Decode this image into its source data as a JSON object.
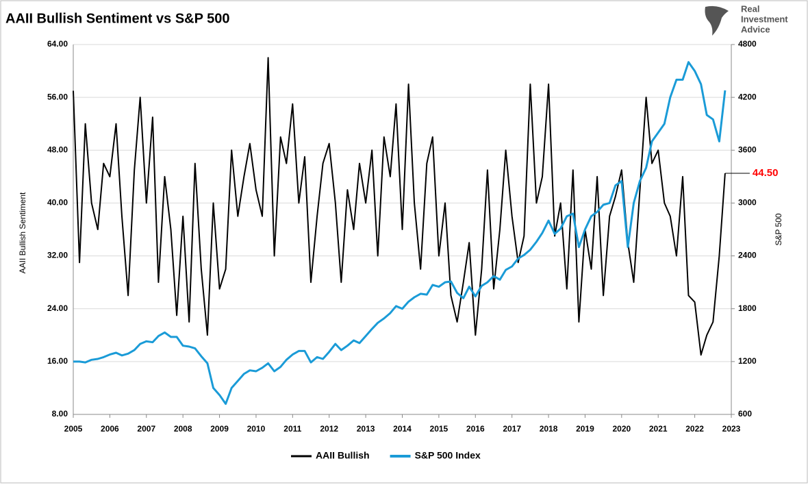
{
  "chart_data": {
    "type": "line",
    "title": "AAII Bullish Sentiment vs S&P 500",
    "logo": [
      "Real",
      "Investment",
      "Advice"
    ],
    "y_label": "AAII Bullish Sentiment",
    "y2_label": "S&P 500",
    "annotation": "44.50",
    "annotation_color": "#ff0000",
    "x": [
      2005.0,
      2005.17,
      2005.33,
      2005.5,
      2005.67,
      2005.83,
      2006.0,
      2006.17,
      2006.33,
      2006.5,
      2006.67,
      2006.83,
      2007.0,
      2007.17,
      2007.33,
      2007.5,
      2007.67,
      2007.83,
      2008.0,
      2008.17,
      2008.33,
      2008.5,
      2008.67,
      2008.83,
      2009.0,
      2009.17,
      2009.33,
      2009.5,
      2009.67,
      2009.83,
      2010.0,
      2010.17,
      2010.33,
      2010.5,
      2010.67,
      2010.83,
      2011.0,
      2011.17,
      2011.33,
      2011.5,
      2011.67,
      2011.83,
      2012.0,
      2012.17,
      2012.33,
      2012.5,
      2012.67,
      2012.83,
      2013.0,
      2013.17,
      2013.33,
      2013.5,
      2013.67,
      2013.83,
      2014.0,
      2014.17,
      2014.33,
      2014.5,
      2014.67,
      2014.83,
      2015.0,
      2015.17,
      2015.33,
      2015.5,
      2015.67,
      2015.83,
      2016.0,
      2016.17,
      2016.33,
      2016.5,
      2016.67,
      2016.83,
      2017.0,
      2017.17,
      2017.33,
      2017.5,
      2017.67,
      2017.83,
      2018.0,
      2018.17,
      2018.33,
      2018.5,
      2018.67,
      2018.83,
      2019.0,
      2019.17,
      2019.33,
      2019.5,
      2019.67,
      2019.83,
      2020.0,
      2020.17,
      2020.33,
      2020.5,
      2020.67,
      2020.83,
      2021.0,
      2021.17,
      2021.33,
      2021.5,
      2021.67,
      2021.83,
      2022.0,
      2022.17,
      2022.33,
      2022.5,
      2022.67,
      2022.83
    ],
    "series": [
      {
        "name": "AAII Bullish",
        "color": "#000000",
        "width": 2,
        "values": [
          57,
          31,
          52,
          40,
          36,
          46,
          44,
          52,
          38,
          26,
          45,
          56,
          40,
          53,
          28,
          44,
          36,
          23,
          38,
          22,
          46,
          30,
          20,
          40,
          27,
          30,
          48,
          38,
          44,
          49,
          42,
          38,
          62,
          32,
          50,
          46,
          55,
          40,
          47,
          28,
          38,
          46,
          49,
          40,
          28,
          42,
          36,
          46,
          40,
          48,
          32,
          50,
          44,
          55,
          36,
          58,
          40,
          30,
          46,
          50,
          32,
          40,
          26,
          22,
          28,
          34,
          20,
          30,
          45,
          27,
          36,
          48,
          38,
          31,
          35,
          58,
          40,
          44,
          58,
          35,
          40,
          27,
          45,
          22,
          36,
          30,
          44,
          26,
          38,
          41,
          45,
          34,
          28,
          42,
          56,
          46,
          48,
          40,
          38,
          32,
          44,
          26,
          25,
          17,
          20,
          22,
          32,
          44.5
        ]
      },
      {
        "name": "S&P 500 Index",
        "color": "#1a9bd7",
        "width": 3,
        "axis": "y2",
        "values": [
          1200,
          1200,
          1190,
          1220,
          1230,
          1250,
          1280,
          1300,
          1270,
          1290,
          1330,
          1400,
          1430,
          1420,
          1490,
          1530,
          1480,
          1480,
          1380,
          1370,
          1350,
          1260,
          1180,
          900,
          820,
          720,
          900,
          980,
          1060,
          1100,
          1090,
          1130,
          1180,
          1090,
          1140,
          1220,
          1280,
          1320,
          1320,
          1190,
          1250,
          1230,
          1310,
          1400,
          1330,
          1380,
          1440,
          1410,
          1490,
          1570,
          1640,
          1690,
          1750,
          1830,
          1800,
          1880,
          1930,
          1970,
          1960,
          2070,
          2050,
          2100,
          2110,
          1980,
          1920,
          2050,
          1940,
          2060,
          2100,
          2170,
          2130,
          2240,
          2280,
          2370,
          2410,
          2470,
          2560,
          2660,
          2800,
          2650,
          2710,
          2850,
          2880,
          2500,
          2700,
          2850,
          2900,
          2980,
          3000,
          3200,
          3250,
          2500,
          3000,
          3250,
          3400,
          3700,
          3800,
          3900,
          4200,
          4400,
          4400,
          4600,
          4500,
          4350,
          4000,
          3950,
          3700,
          4280
        ]
      }
    ],
    "xlim": [
      2005,
      2023
    ],
    "xticks": [
      2005,
      2006,
      2007,
      2008,
      2009,
      2010,
      2011,
      2012,
      2013,
      2014,
      2015,
      2016,
      2017,
      2018,
      2019,
      2020,
      2021,
      2022,
      2023
    ],
    "ylim": [
      8,
      64
    ],
    "yticks": [
      {
        "value": 8,
        "label": "8.00"
      },
      {
        "value": 16,
        "label": "16.00"
      },
      {
        "value": 24,
        "label": "24.00"
      },
      {
        "value": 32,
        "label": "32.00"
      },
      {
        "value": 40,
        "label": "40.00"
      },
      {
        "value": 48,
        "label": "48.00"
      },
      {
        "value": 56,
        "label": "56.00"
      },
      {
        "value": 64,
        "label": "64.00"
      }
    ],
    "y2lim": [
      600,
      4800
    ],
    "y2ticks": [
      600,
      1200,
      1800,
      2400,
      3000,
      3600,
      4200,
      4800
    ],
    "grid": true,
    "legend": "bottom"
  }
}
